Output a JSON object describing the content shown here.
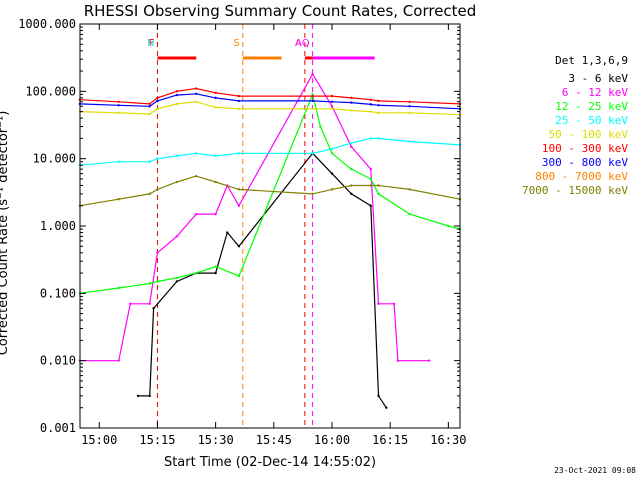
{
  "chart_data": {
    "type": "line",
    "title": "RHESSI Observing Summary Count Rates, Corrected",
    "xlabel": "Start Time (02-Dec-14 14:55:02)",
    "ylabel": "Corrected Count Rate (s⁻¹ detector⁻¹)",
    "yscale": "log",
    "xlim": [
      "14:55:02",
      "16:33:00"
    ],
    "ylim": [
      0.001,
      1000
    ],
    "x_ticks": [
      "15:00",
      "15:15",
      "15:30",
      "15:45",
      "16:00",
      "16:15",
      "16:30"
    ],
    "y_ticks": [
      "0.001",
      "0.010",
      "0.100",
      "1.000",
      "10.000",
      "100.000",
      "1000.000"
    ],
    "legend_title": "Det 1,3,6,9",
    "legend_position": "right",
    "series": [
      {
        "name": "3 - 6 keV",
        "color": "#000000",
        "x": [
          "15:10",
          "15:13",
          "15:14",
          "15:20",
          "15:25",
          "15:30",
          "15:33",
          "15:36",
          "15:55",
          "16:00",
          "16:05",
          "16:10",
          "16:12",
          "16:14"
        ],
        "values": [
          0.003,
          0.003,
          0.06,
          0.15,
          0.2,
          0.2,
          0.8,
          0.5,
          12,
          6,
          3,
          2,
          0.003,
          0.002
        ]
      },
      {
        "name": "6 - 12 keV",
        "color": "#ff00ff",
        "x": [
          "14:55",
          "15:05",
          "15:08",
          "15:13",
          "15:15",
          "15:20",
          "15:25",
          "15:30",
          "15:33",
          "15:36",
          "15:55",
          "16:00",
          "16:05",
          "16:10",
          "16:12",
          "16:16",
          "16:17",
          "16:25"
        ],
        "values": [
          0.01,
          0.01,
          0.07,
          0.07,
          0.4,
          0.7,
          1.5,
          1.5,
          4,
          2,
          180,
          60,
          15,
          7,
          0.07,
          0.07,
          0.01,
          0.01
        ]
      },
      {
        "name": "12 - 25 keV",
        "color": "#00ff00",
        "x": [
          "14:55",
          "15:05",
          "15:13",
          "15:15",
          "15:20",
          "15:25",
          "15:30",
          "15:36",
          "15:55",
          "15:57",
          "16:00",
          "16:05",
          "16:10",
          "16:12",
          "16:20",
          "16:30",
          "16:33"
        ],
        "values": [
          0.1,
          0.12,
          0.14,
          0.15,
          0.17,
          0.2,
          0.25,
          0.18,
          90,
          30,
          12,
          7,
          5,
          3,
          1.5,
          1.0,
          0.9
        ]
      },
      {
        "name": "25 - 50 keV",
        "color": "#00ffff",
        "x": [
          "14:55",
          "15:05",
          "15:13",
          "15:15",
          "15:20",
          "15:25",
          "15:30",
          "15:36",
          "15:55",
          "16:00",
          "16:05",
          "16:10",
          "16:12",
          "16:20",
          "16:33"
        ],
        "values": [
          8,
          9,
          9,
          10,
          11,
          12,
          11,
          12,
          12,
          14,
          17,
          20,
          20,
          18,
          16
        ]
      },
      {
        "name": "50 - 100 keV",
        "color": "#dddd00",
        "x": [
          "14:55",
          "15:05",
          "15:13",
          "15:15",
          "15:20",
          "15:25",
          "15:30",
          "15:36",
          "15:55",
          "16:00",
          "16:05",
          "16:10",
          "16:12",
          "16:20",
          "16:33"
        ],
        "values": [
          50,
          48,
          46,
          55,
          65,
          70,
          58,
          55,
          55,
          55,
          52,
          50,
          48,
          48,
          45
        ]
      },
      {
        "name": "100 - 300 keV",
        "color": "#ff0000",
        "x": [
          "14:55",
          "15:05",
          "15:13",
          "15:15",
          "15:20",
          "15:25",
          "15:30",
          "15:36",
          "15:55",
          "16:00",
          "16:05",
          "16:10",
          "16:12",
          "16:20",
          "16:33"
        ],
        "values": [
          75,
          70,
          65,
          80,
          100,
          110,
          95,
          85,
          85,
          85,
          80,
          75,
          72,
          70,
          65
        ]
      },
      {
        "name": "300 - 800 keV",
        "color": "#0000ff",
        "x": [
          "14:55",
          "15:05",
          "15:13",
          "15:15",
          "15:20",
          "15:25",
          "15:30",
          "15:36",
          "15:55",
          "16:00",
          "16:05",
          "16:10",
          "16:12",
          "16:20",
          "16:33"
        ],
        "values": [
          65,
          62,
          60,
          72,
          88,
          92,
          80,
          72,
          72,
          70,
          68,
          64,
          62,
          60,
          55
        ]
      },
      {
        "name": "800 - 7000 keV",
        "color": "#ff8000",
        "x": [],
        "values": []
      },
      {
        "name": "7000 - 15000 keV",
        "color": "#808000",
        "x": [
          "14:55",
          "15:05",
          "15:13",
          "15:15",
          "15:20",
          "15:25",
          "15:30",
          "15:36",
          "15:55",
          "16:00",
          "16:05",
          "16:10",
          "16:12",
          "16:20",
          "16:33"
        ],
        "values": [
          2,
          2.5,
          3,
          3.5,
          4.5,
          5.5,
          4.5,
          3.5,
          3,
          3.5,
          4,
          4,
          4,
          3.5,
          2.5
        ]
      }
    ],
    "flags": [
      {
        "label": "N",
        "color": "#00ffff",
        "x_start": "15:15",
        "x_end": "15:16"
      },
      {
        "label": "F",
        "color": "#ff0000",
        "x_start": "15:15",
        "x_end": "15:25"
      },
      {
        "label": "S",
        "color": "#ff8000",
        "x_start": "15:37",
        "x_end": "15:47"
      },
      {
        "label": "A",
        "color": "#ff0000",
        "x_start": "15:53",
        "x_end": "15:54"
      },
      {
        "label": "AQ",
        "color": "#ff00ff",
        "x_start": "15:55",
        "x_end": "16:11"
      }
    ],
    "timestamp": "23-Oct-2021 09:08"
  }
}
